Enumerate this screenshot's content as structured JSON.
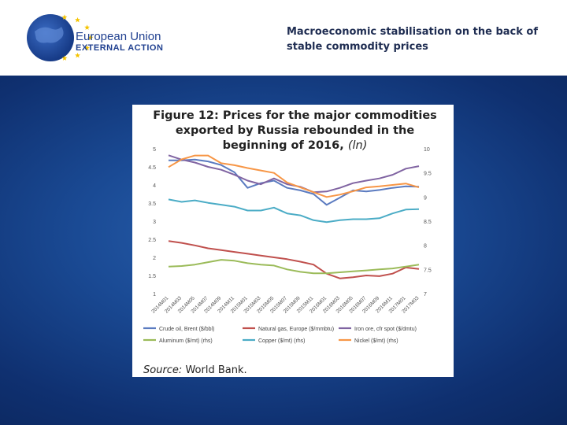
{
  "header": {
    "logo_line1": "European Union",
    "logo_line2": "EXTERNAL ACTION",
    "title": "Macroeconomic stabilisation on the back of stable commodity prices"
  },
  "colors": {
    "eu_blue": "#1f3f8f",
    "star_yellow": "#f5c400",
    "background_blue": "#1a4a94"
  },
  "figure": {
    "title_main": "Figure 12: Prices for the major commodities exported by Russia rebounded in the beginning of 2016,",
    "title_unit": "(ln)",
    "source_label": "Source:",
    "source_text": "World Bank."
  },
  "chart_data": {
    "type": "line",
    "title": "",
    "x": [
      "2014M01",
      "2014M03",
      "2014M05",
      "2014M07",
      "2014M09",
      "2014M11",
      "2015M01",
      "2015M03",
      "2015M05",
      "2015M07",
      "2015M09",
      "2015M11",
      "2016M01",
      "2016M03",
      "2016M05",
      "2016M07",
      "2016M09",
      "2016M11",
      "2017M01",
      "2017M03"
    ],
    "x_tick_labels": [
      "2014M01",
      "2014M03",
      "2014M05",
      "2014M07",
      "2014M09",
      "2014M11",
      "2015M01",
      "2015M03",
      "2015M05",
      "2015M07",
      "2015M09",
      "2015M11",
      "2016M01",
      "2016M03",
      "2016M05",
      "2016M07",
      "2016M09",
      "2016M11",
      "2017M01",
      "2017M03"
    ],
    "y_left": {
      "ylim": [
        1,
        5
      ],
      "ticks": [
        "1",
        "1.5",
        "2",
        "2.5",
        "3",
        "3.5",
        "4",
        "4.5",
        "5"
      ]
    },
    "y_right": {
      "ylim": [
        7,
        10
      ],
      "ticks": [
        "7",
        "7.5",
        "8",
        "8.5",
        "9",
        "9.5",
        "10"
      ]
    },
    "grid": false,
    "legend_position": "bottom",
    "series": [
      {
        "name": "Crude oil, Brent ($/bbl)",
        "axis": "left",
        "color": "#5b7bc0",
        "values": [
          4.68,
          4.68,
          4.7,
          4.65,
          4.55,
          4.35,
          3.92,
          4.05,
          4.12,
          3.92,
          3.85,
          3.75,
          3.45,
          3.65,
          3.85,
          3.82,
          3.86,
          3.92,
          3.96,
          3.95
        ]
      },
      {
        "name": "Natural gas, Europe ($/mmbtu)",
        "axis": "left",
        "color": "#c0504d",
        "values": [
          2.45,
          2.4,
          2.33,
          2.25,
          2.2,
          2.15,
          2.1,
          2.05,
          2.0,
          1.95,
          1.88,
          1.8,
          1.55,
          1.42,
          1.45,
          1.5,
          1.48,
          1.55,
          1.72,
          1.68
        ]
      },
      {
        "name": "Iron ore, cfr spot ($/dmtu)",
        "axis": "left",
        "color": "#8064a2",
        "values": [
          4.82,
          4.7,
          4.62,
          4.5,
          4.42,
          4.28,
          4.12,
          4.02,
          4.18,
          4.02,
          3.95,
          3.8,
          3.82,
          3.92,
          4.05,
          4.12,
          4.18,
          4.28,
          4.45,
          4.52
        ]
      },
      {
        "name": "Aluminum ($/mt) (rhs)",
        "axis": "right",
        "color": "#9bbb59",
        "values": [
          7.56,
          7.57,
          7.6,
          7.65,
          7.7,
          7.68,
          7.63,
          7.6,
          7.58,
          7.5,
          7.45,
          7.42,
          7.42,
          7.44,
          7.46,
          7.48,
          7.5,
          7.52,
          7.56,
          7.6
        ]
      },
      {
        "name": "Copper ($/mt) (rhs)",
        "axis": "right",
        "color": "#4bacc6",
        "values": [
          8.95,
          8.9,
          8.93,
          8.88,
          8.84,
          8.8,
          8.72,
          8.72,
          8.78,
          8.66,
          8.62,
          8.52,
          8.48,
          8.52,
          8.54,
          8.54,
          8.56,
          8.66,
          8.74,
          8.75
        ]
      },
      {
        "name": "Nickel ($/mt) (rhs)",
        "axis": "right",
        "color": "#f79646",
        "values": [
          9.62,
          9.78,
          9.86,
          9.86,
          9.7,
          9.66,
          9.6,
          9.55,
          9.5,
          9.3,
          9.2,
          9.1,
          9.0,
          9.05,
          9.12,
          9.2,
          9.22,
          9.25,
          9.28,
          9.2
        ]
      }
    ]
  }
}
